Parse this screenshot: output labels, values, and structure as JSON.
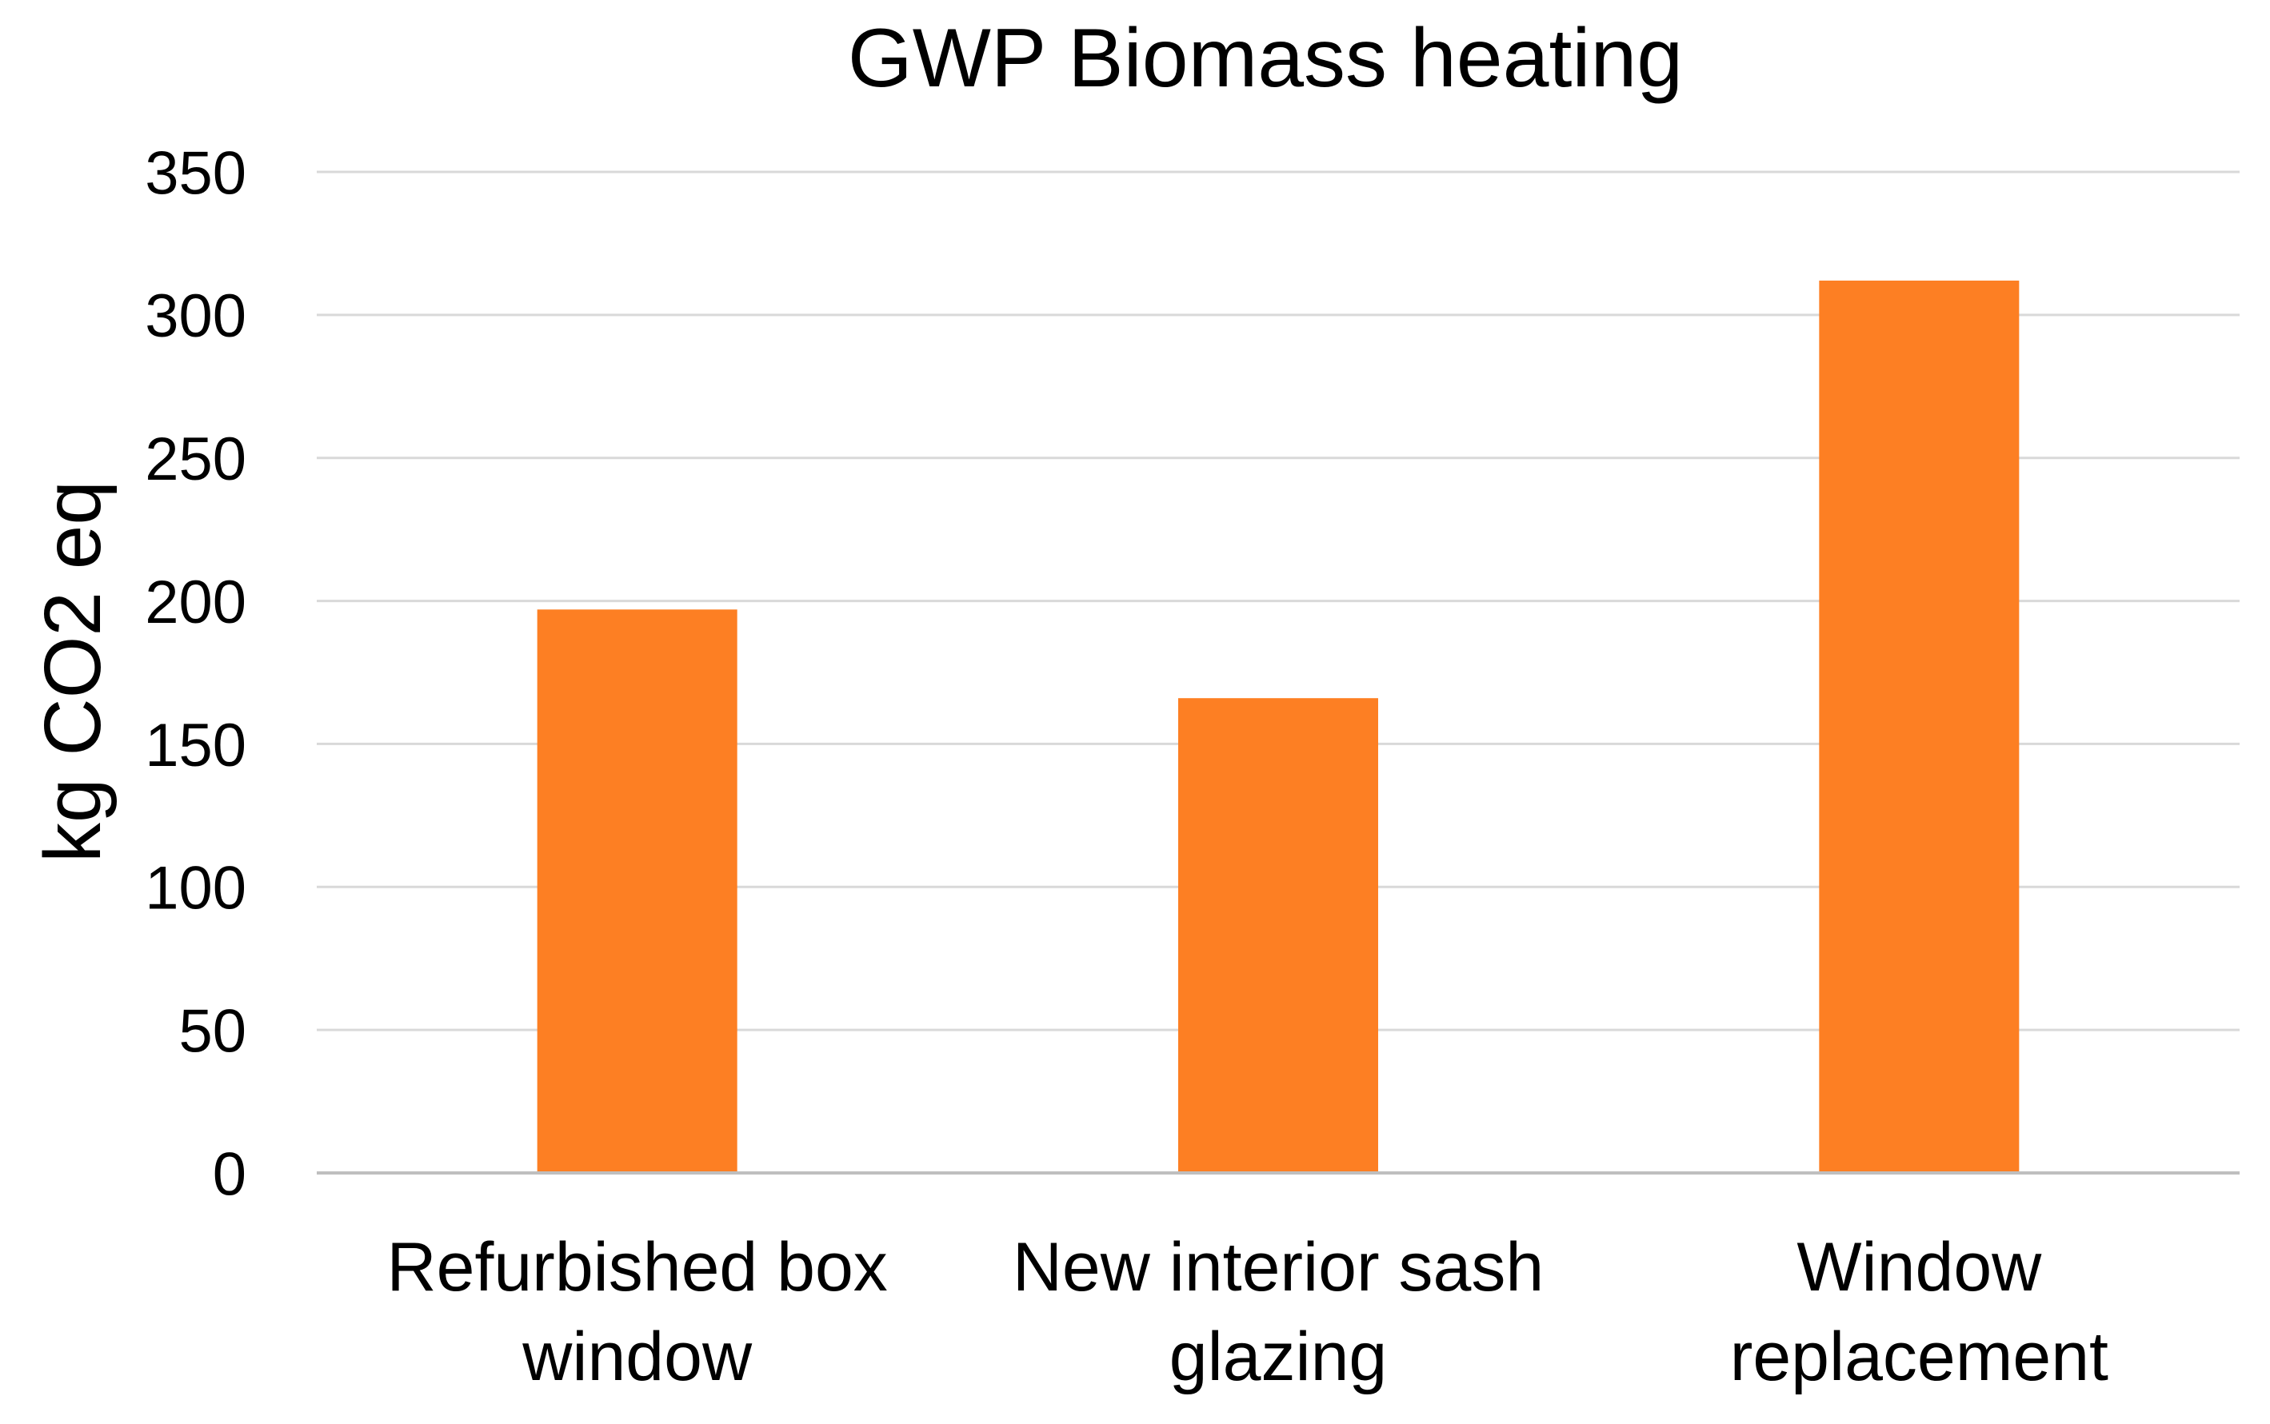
{
  "chart_data": {
    "type": "bar",
    "title": "GWP Biomass heating",
    "ylabel": "kg CO2 eq",
    "xlabel": "",
    "categories": [
      [
        "Refurbished box",
        "window"
      ],
      [
        "New interior sash",
        "glazing"
      ],
      [
        "Window",
        "replacement"
      ]
    ],
    "values": [
      197,
      166,
      312
    ],
    "ylim": [
      0,
      350
    ],
    "yticks": [
      "0",
      "50",
      "100",
      "150",
      "200",
      "250",
      "300",
      "350"
    ],
    "grid": true,
    "legend": "none",
    "colors": {
      "bar": "#FD7F23",
      "grid": "#D9D9D9",
      "axis": "#BFBFBF",
      "text": "#000000"
    }
  }
}
